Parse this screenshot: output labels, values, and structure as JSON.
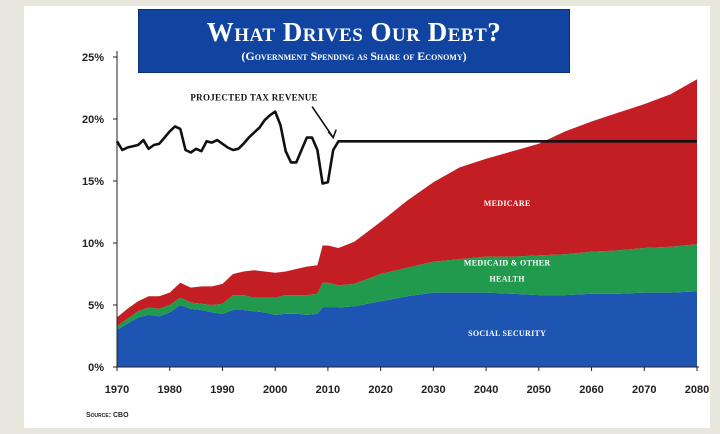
{
  "chart_data": {
    "type": "area",
    "title": "What Drives Our Debt?",
    "subtitle": "(Government Spending as Share of Economy)",
    "xlabel": "",
    "ylabel": "",
    "xlim": [
      1970,
      2080
    ],
    "ylim": [
      0,
      25
    ],
    "x_ticks": [
      "1970",
      "1980",
      "1990",
      "2000",
      "2010",
      "2020",
      "2030",
      "2040",
      "2050",
      "2060",
      "2070",
      "2080"
    ],
    "y_ticks": [
      "0%",
      "5%",
      "10%",
      "15%",
      "20%",
      "25%"
    ],
    "grid": false,
    "x": [
      1970,
      1972,
      1974,
      1976,
      1978,
      1980,
      1982,
      1984,
      1986,
      1988,
      1990,
      1992,
      1994,
      1996,
      1998,
      2000,
      2002,
      2004,
      2006,
      2008,
      2009,
      2010,
      2012,
      2015,
      2020,
      2025,
      2030,
      2035,
      2040,
      2045,
      2050,
      2055,
      2060,
      2065,
      2070,
      2075,
      2080
    ],
    "series": [
      {
        "name": "Social Security",
        "color": "#1e55b3",
        "values": [
          3.0,
          3.5,
          4.0,
          4.2,
          4.1,
          4.4,
          5.0,
          4.7,
          4.6,
          4.4,
          4.3,
          4.6,
          4.6,
          4.5,
          4.4,
          4.2,
          4.3,
          4.3,
          4.2,
          4.3,
          4.8,
          4.8,
          4.8,
          4.9,
          5.3,
          5.7,
          6.0,
          6.0,
          6.0,
          5.9,
          5.8,
          5.8,
          5.9,
          5.9,
          6.0,
          6.0,
          6.1
        ]
      },
      {
        "name": "Medicaid & Other Health",
        "color": "#229a4d",
        "values": [
          0.3,
          0.4,
          0.5,
          0.6,
          0.6,
          0.6,
          0.6,
          0.5,
          0.5,
          0.6,
          0.8,
          1.2,
          1.2,
          1.1,
          1.2,
          1.4,
          1.5,
          1.5,
          1.6,
          1.6,
          2.0,
          2.0,
          1.8,
          1.8,
          2.2,
          2.3,
          2.5,
          2.7,
          2.9,
          3.0,
          3.2,
          3.3,
          3.4,
          3.5,
          3.6,
          3.7,
          3.8
        ]
      },
      {
        "name": "Medicare",
        "color": "#c21e23",
        "values": [
          0.7,
          0.8,
          0.8,
          0.9,
          1.0,
          1.0,
          1.2,
          1.2,
          1.4,
          1.5,
          1.6,
          1.7,
          1.9,
          2.2,
          2.1,
          2.0,
          1.9,
          2.1,
          2.3,
          2.3,
          3.0,
          3.0,
          3.0,
          3.4,
          4.2,
          5.4,
          6.4,
          7.4,
          7.9,
          8.5,
          9.0,
          9.9,
          10.5,
          11.1,
          11.6,
          12.3,
          13.3
        ]
      }
    ],
    "line": {
      "name": "Projected Tax Revenue",
      "color": "#111111",
      "x": [
        1970,
        1971,
        1972,
        1974,
        1975,
        1976,
        1977,
        1978,
        1979,
        1980,
        1981,
        1982,
        1983,
        1984,
        1985,
        1986,
        1987,
        1988,
        1989,
        1990,
        1991,
        1992,
        1993,
        1994,
        1995,
        1996,
        1997,
        1998,
        1999,
        2000,
        2001,
        2002,
        2003,
        2004,
        2005,
        2006,
        2007,
        2008,
        2009,
        2010,
        2011,
        2012,
        2015,
        2020,
        2030,
        2040,
        2050,
        2060,
        2070,
        2080
      ],
      "values": [
        18.2,
        17.5,
        17.7,
        17.9,
        18.3,
        17.6,
        17.9,
        18.0,
        18.5,
        19.0,
        19.4,
        19.2,
        17.5,
        17.3,
        17.6,
        17.4,
        18.2,
        18.1,
        18.3,
        18.0,
        17.7,
        17.5,
        17.6,
        18.0,
        18.5,
        18.9,
        19.3,
        19.9,
        20.3,
        20.6,
        19.5,
        17.4,
        16.5,
        16.5,
        17.5,
        18.5,
        18.5,
        17.5,
        14.8,
        14.9,
        17.5,
        18.2,
        18.2,
        18.2,
        18.2,
        18.2,
        18.2,
        18.2,
        18.2,
        18.2
      ]
    },
    "annotations": [
      {
        "text": "Projected Tax Revenue",
        "x": 1996,
        "y": 21.5
      },
      {
        "text": "Medicare",
        "x": 2044,
        "y": 13.0
      },
      {
        "text": "Medicaid & Other",
        "x": 2044,
        "y": 8.2
      },
      {
        "text": "Health",
        "x": 2044,
        "y": 6.9
      },
      {
        "text": "Social Security",
        "x": 2044,
        "y": 2.5
      }
    ],
    "source": "Source: CBO"
  }
}
